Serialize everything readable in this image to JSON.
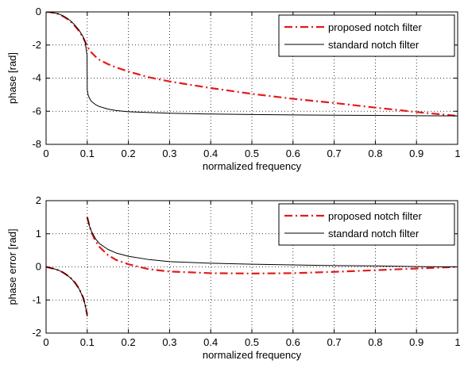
{
  "chart_data": [
    {
      "type": "line",
      "xlabel": "normalized frequency",
      "ylabel": "phase [rad]",
      "xlim": [
        0,
        1
      ],
      "ylim": [
        -8,
        0
      ],
      "xticks": [
        0,
        0.1,
        0.2,
        0.3,
        0.4,
        0.5,
        0.6,
        0.7,
        0.8,
        0.9,
        1
      ],
      "xtick_labels": [
        "0",
        "0.1",
        "0.2",
        "0.3",
        "0.4",
        "0.5",
        "0.6",
        "0.7",
        "0.8",
        "0.9",
        "1"
      ],
      "yticks": [
        -8,
        -6,
        -4,
        -2,
        0
      ],
      "ytick_labels": [
        "-8",
        "-6",
        "-4",
        "-2",
        "0"
      ],
      "grid": true,
      "legend_position": "top-right",
      "series": [
        {
          "name": "proposed notch filter",
          "color": "#e31a1c",
          "line_style": "dash-dot",
          "x": [
            0,
            0.01,
            0.02,
            0.03,
            0.04,
            0.05,
            0.06,
            0.07,
            0.08,
            0.09,
            0.095,
            0.1,
            0.11,
            0.12,
            0.13,
            0.15,
            0.17,
            0.2,
            0.25,
            0.3,
            0.4,
            0.5,
            0.6,
            0.7,
            0.8,
            0.9,
            1
          ],
          "y": [
            0,
            -0.02,
            -0.06,
            -0.13,
            -0.25,
            -0.4,
            -0.6,
            -0.85,
            -1.15,
            -1.55,
            -1.8,
            -2.1,
            -2.45,
            -2.7,
            -2.9,
            -3.15,
            -3.35,
            -3.6,
            -3.95,
            -4.2,
            -4.6,
            -4.95,
            -5.25,
            -5.5,
            -5.78,
            -6.05,
            -6.28
          ]
        },
        {
          "name": "standard notch filter",
          "color": "#000000",
          "line_style": "solid",
          "x": [
            0,
            0.01,
            0.02,
            0.03,
            0.04,
            0.05,
            0.06,
            0.07,
            0.08,
            0.09,
            0.095,
            0.0995,
            0.1,
            0.102,
            0.105,
            0.11,
            0.12,
            0.13,
            0.15,
            0.17,
            0.2,
            0.25,
            0.3,
            0.4,
            0.5,
            0.6,
            0.7,
            0.8,
            0.9,
            1
          ],
          "y": [
            0,
            -0.02,
            -0.06,
            -0.12,
            -0.22,
            -0.36,
            -0.55,
            -0.8,
            -1.1,
            -1.5,
            -1.85,
            -2.6,
            -4.7,
            -5.0,
            -5.2,
            -5.4,
            -5.6,
            -5.72,
            -5.87,
            -5.96,
            -6.03,
            -6.08,
            -6.12,
            -6.17,
            -6.2,
            -6.22,
            -6.24,
            -6.25,
            -6.27,
            -6.28
          ]
        }
      ]
    },
    {
      "type": "line",
      "xlabel": "normalized frequency",
      "ylabel": "phase error [rad]",
      "xlim": [
        0,
        1
      ],
      "ylim": [
        -2,
        2
      ],
      "xticks": [
        0,
        0.1,
        0.2,
        0.3,
        0.4,
        0.5,
        0.6,
        0.7,
        0.8,
        0.9,
        1
      ],
      "xtick_labels": [
        "0",
        "0.1",
        "0.2",
        "0.3",
        "0.4",
        "0.5",
        "0.6",
        "0.7",
        "0.8",
        "0.9",
        "1"
      ],
      "yticks": [
        -2,
        -1,
        0,
        1,
        2
      ],
      "ytick_labels": [
        "-2",
        "-1",
        "0",
        "1",
        "2"
      ],
      "grid": true,
      "legend_position": "top-right",
      "series": [
        {
          "name": "proposed notch filter",
          "color": "#e31a1c",
          "line_style": "dash-dot",
          "segments": [
            {
              "x": [
                0,
                0.01,
                0.02,
                0.03,
                0.04,
                0.05,
                0.06,
                0.07,
                0.08,
                0.09,
                0.095,
                0.1
              ],
              "y": [
                0,
                -0.03,
                -0.06,
                -0.1,
                -0.16,
                -0.24,
                -0.34,
                -0.47,
                -0.65,
                -0.92,
                -1.15,
                -1.45
              ]
            },
            {
              "x": [
                0.1,
                0.105,
                0.11,
                0.12,
                0.13,
                0.15,
                0.17,
                0.2,
                0.25,
                0.3,
                0.4,
                0.5,
                0.6,
                0.7,
                0.8,
                0.9,
                1
              ],
              "y": [
                1.5,
                1.25,
                1.05,
                0.78,
                0.6,
                0.36,
                0.21,
                0.08,
                -0.07,
                -0.14,
                -0.19,
                -0.2,
                -0.19,
                -0.15,
                -0.1,
                -0.05,
                0
              ]
            }
          ]
        },
        {
          "name": "standard notch filter",
          "color": "#000000",
          "line_style": "solid",
          "segments": [
            {
              "x": [
                0,
                0.01,
                0.02,
                0.03,
                0.04,
                0.05,
                0.06,
                0.07,
                0.08,
                0.09,
                0.095,
                0.1
              ],
              "y": [
                0,
                -0.03,
                -0.06,
                -0.1,
                -0.16,
                -0.24,
                -0.34,
                -0.48,
                -0.66,
                -0.93,
                -1.15,
                -1.5
              ]
            },
            {
              "x": [
                0.1,
                0.105,
                0.11,
                0.12,
                0.13,
                0.15,
                0.17,
                0.2,
                0.25,
                0.3,
                0.4,
                0.5,
                0.6,
                0.7,
                0.8,
                0.9,
                1
              ],
              "y": [
                1.5,
                1.25,
                1.08,
                0.85,
                0.7,
                0.53,
                0.42,
                0.32,
                0.22,
                0.16,
                0.11,
                0.08,
                0.06,
                0.04,
                0.03,
                0.01,
                0
              ]
            }
          ]
        }
      ]
    }
  ]
}
